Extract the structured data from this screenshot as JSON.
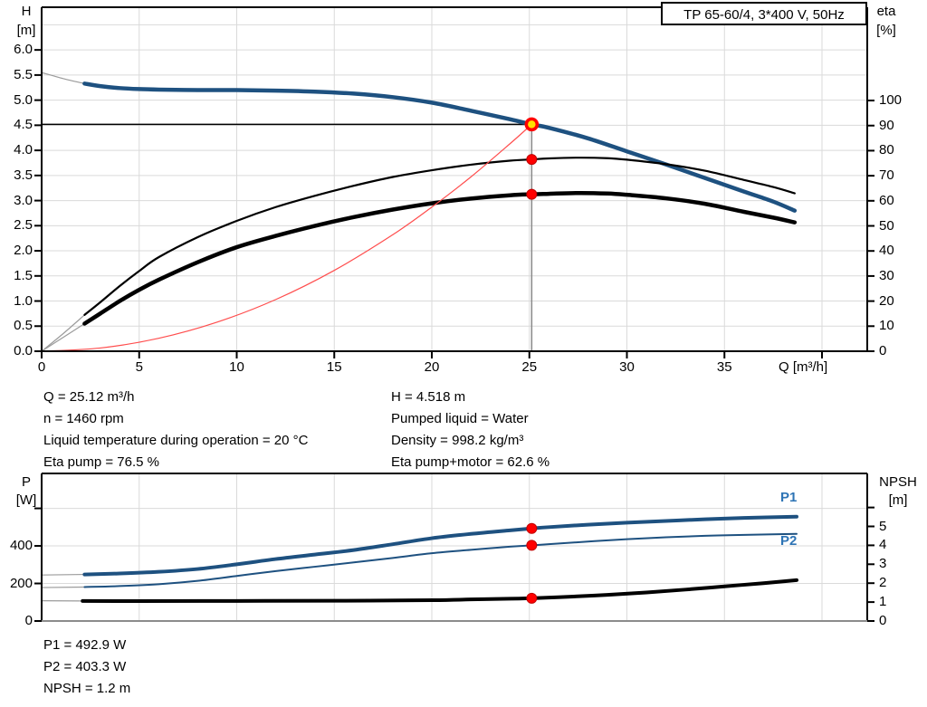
{
  "title_box": {
    "text": "TP 65-60/4, 3*400 V, 50Hz"
  },
  "colors": {
    "curve_blue": "#1E5180",
    "label_blue": "#2E74B5",
    "red_dot": "#FF0000",
    "red_dot_edge": "#C00000",
    "system_curve_red": "#FF4D4D",
    "duty_yellow": "#FFE100",
    "grid": "#DADADA",
    "lead_gray": "#9B9B9B",
    "duty_vline_gray": "#8A8A8A",
    "frame_black": "#000000",
    "bottom_frame_gray": "#8C8C8C",
    "text": "#000000"
  },
  "annotations": {
    "left": [
      "Q = 25.12 m³/h",
      "n = 1460 rpm",
      "Liquid temperature during operation = 20 °C",
      "Eta pump = 76.5 %"
    ],
    "right": [
      "H = 4.518 m",
      "Pumped liquid = Water",
      "Density = 998.2 kg/m³",
      "Eta pump+motor = 62.6 %"
    ],
    "bottom": [
      "P1 = 492.9 W",
      "P2 = 403.3 W",
      "NPSH = 1.2 m"
    ]
  },
  "chart_data": [
    {
      "type": "line",
      "title": "TP 65-60/4, 3*400 V, 50Hz",
      "x_axis": {
        "label": "Q [m³/h]",
        "range": [
          0,
          42.32
        ],
        "ticks": [
          {
            "v": 0,
            "t": "0"
          },
          {
            "v": 5,
            "t": "5"
          },
          {
            "v": 10,
            "t": "10"
          },
          {
            "v": 15,
            "t": "15"
          },
          {
            "v": 20,
            "t": "20"
          },
          {
            "v": 25,
            "t": "25"
          },
          {
            "v": 30,
            "t": "30"
          },
          {
            "v": 35,
            "t": "35"
          },
          {
            "v": 40,
            "t": ""
          }
        ],
        "grid": [
          5,
          10,
          15,
          20,
          25,
          30,
          35,
          40
        ]
      },
      "y_axis": {
        "label": "H",
        "unit": "[m]",
        "range": [
          0,
          6.85
        ],
        "ticks": [
          {
            "v": 0,
            "t": "0.0"
          },
          {
            "v": 0.5,
            "t": "0.5"
          },
          {
            "v": 1,
            "t": "1.0"
          },
          {
            "v": 1.5,
            "t": "1.5"
          },
          {
            "v": 2,
            "t": "2.0"
          },
          {
            "v": 2.5,
            "t": "2.5"
          },
          {
            "v": 3,
            "t": "3.0"
          },
          {
            "v": 3.5,
            "t": "3.5"
          },
          {
            "v": 4,
            "t": "4.0"
          },
          {
            "v": 4.5,
            "t": "4.5"
          },
          {
            "v": 5,
            "t": "5.0"
          },
          {
            "v": 5.5,
            "t": "5.5"
          },
          {
            "v": 6,
            "t": "6.0"
          }
        ],
        "grid": [
          0.5,
          1,
          1.5,
          2,
          2.5,
          3,
          3.5,
          4,
          4.5,
          5,
          5.5,
          6,
          6.5
        ]
      },
      "y2_axis": {
        "label": "eta",
        "unit": "[%]",
        "range": [
          0,
          137.2
        ],
        "ticks": [
          {
            "v": 0,
            "t": "0"
          },
          {
            "v": 10,
            "t": "10"
          },
          {
            "v": 20,
            "t": "20"
          },
          {
            "v": 30,
            "t": "30"
          },
          {
            "v": 40,
            "t": "40"
          },
          {
            "v": 50,
            "t": "50"
          },
          {
            "v": 60,
            "t": "60"
          },
          {
            "v": 70,
            "t": "70"
          },
          {
            "v": 80,
            "t": "80"
          },
          {
            "v": 90,
            "t": "90"
          },
          {
            "v": 100,
            "t": "100"
          }
        ]
      },
      "series": [
        {
          "name": "H-curve",
          "axis": "y",
          "color": "#1E5180",
          "width": 4.5,
          "points": [
            [
              2.2,
              5.33
            ],
            [
              3,
              5.28
            ],
            [
              4,
              5.24
            ],
            [
              5,
              5.22
            ],
            [
              6,
              5.21
            ],
            [
              8,
              5.2
            ],
            [
              10,
              5.2
            ],
            [
              12,
              5.19
            ],
            [
              14,
              5.17
            ],
            [
              16,
              5.13
            ],
            [
              18,
              5.06
            ],
            [
              20,
              4.95
            ],
            [
              22,
              4.79
            ],
            [
              24,
              4.62
            ],
            [
              25.12,
              4.518
            ],
            [
              26,
              4.45
            ],
            [
              28,
              4.24
            ],
            [
              30,
              3.98
            ],
            [
              32,
              3.72
            ],
            [
              34,
              3.45
            ],
            [
              36,
              3.18
            ],
            [
              37.5,
              2.98
            ],
            [
              38.6,
              2.8
            ]
          ]
        },
        {
          "name": "eta-pump",
          "axis": "y2",
          "color": "#000000",
          "width": 2.2,
          "points": [
            [
              2.2,
              14.5
            ],
            [
              3,
              19.5
            ],
            [
              4,
              26
            ],
            [
              5,
              32
            ],
            [
              6,
              37.5
            ],
            [
              8,
              45.5
            ],
            [
              10,
              52
            ],
            [
              12,
              57.5
            ],
            [
              14,
              62
            ],
            [
              16,
              66
            ],
            [
              18,
              69.5
            ],
            [
              20,
              72.2
            ],
            [
              22,
              74.4
            ],
            [
              24,
              76
            ],
            [
              25.12,
              76.5
            ],
            [
              26,
              76.9
            ],
            [
              27.5,
              77.2
            ],
            [
              29,
              77
            ],
            [
              30,
              76.4
            ],
            [
              32,
              74.6
            ],
            [
              34,
              72
            ],
            [
              36,
              68.3
            ],
            [
              37.5,
              65.5
            ],
            [
              38.6,
              63
            ]
          ]
        },
        {
          "name": "eta-pump-motor",
          "axis": "y2",
          "color": "#000000",
          "width": 4.5,
          "points": [
            [
              2.2,
              11
            ],
            [
              3,
              15
            ],
            [
              4,
              20
            ],
            [
              5,
              24.5
            ],
            [
              6,
              28.5
            ],
            [
              8,
              35.5
            ],
            [
              10,
              41.5
            ],
            [
              12,
              46
            ],
            [
              14,
              50
            ],
            [
              16,
              53.5
            ],
            [
              18,
              56.5
            ],
            [
              20,
              59
            ],
            [
              22,
              60.9
            ],
            [
              24,
              62.2
            ],
            [
              25.12,
              62.6
            ],
            [
              26,
              62.8
            ],
            [
              27.5,
              63.1
            ],
            [
              29,
              62.9
            ],
            [
              30,
              62.4
            ],
            [
              32,
              61
            ],
            [
              34,
              58.8
            ],
            [
              36,
              55.6
            ],
            [
              37.5,
              53.3
            ],
            [
              38.6,
              51.4
            ]
          ]
        },
        {
          "name": "system-curve",
          "axis": "y",
          "color": "#FF4D4D",
          "width": 1.2,
          "points": [
            [
              0,
              0
            ],
            [
              3,
              0.064
            ],
            [
              6,
              0.258
            ],
            [
              9,
              0.58
            ],
            [
              12,
              1.03
            ],
            [
              15,
              1.61
            ],
            [
              18,
              2.32
            ],
            [
              20,
              2.87
            ],
            [
              22,
              3.47
            ],
            [
              24,
              4.13
            ],
            [
              25.12,
              4.518
            ]
          ]
        },
        {
          "name": "H-curve-lead",
          "axis": "y",
          "color": "#9B9B9B",
          "width": 1.2,
          "lead": true,
          "points": [
            [
              0,
              5.55
            ],
            [
              1.1,
              5.43
            ],
            [
              2.2,
              5.33
            ]
          ]
        },
        {
          "name": "eta-pump-lead",
          "axis": "y2",
          "color": "#9B9B9B",
          "width": 1.2,
          "lead": true,
          "points": [
            [
              0,
              0
            ],
            [
              1.1,
              7
            ],
            [
              2.2,
              14.5
            ]
          ]
        },
        {
          "name": "eta-pump-motor-lead",
          "axis": "y2",
          "color": "#9B9B9B",
          "width": 1.2,
          "lead": true,
          "points": [
            [
              0,
              0
            ],
            [
              1.1,
              5.5
            ],
            [
              2.2,
              11
            ]
          ]
        }
      ],
      "duty_lines": {
        "horizontal": {
          "value": 4.518,
          "to_q": 25.12
        },
        "vertical": {
          "q": 25.12,
          "from_value": 4.518
        }
      },
      "markers": [
        {
          "type": "duty-point",
          "q": 25.12,
          "value": 4.518,
          "axis": "y"
        },
        {
          "type": "dot",
          "q": 25.12,
          "value": 76.5,
          "axis": "y2"
        },
        {
          "type": "dot",
          "q": 25.12,
          "value": 62.6,
          "axis": "y2"
        }
      ]
    },
    {
      "type": "line",
      "x_axis": {
        "label": "",
        "range": [
          0,
          42.32
        ],
        "ticks": [],
        "grid": [
          5,
          10,
          15,
          20,
          25,
          30,
          35,
          40
        ]
      },
      "y_axis": {
        "label": "P",
        "unit": "[W]",
        "range": [
          0,
          786
        ],
        "ticks": [
          {
            "v": 0,
            "t": "0"
          },
          {
            "v": 200,
            "t": "200"
          },
          {
            "v": 400,
            "t": "400"
          },
          {
            "v": 600,
            "t": ""
          }
        ],
        "grid": [
          200,
          400,
          600
        ]
      },
      "y2_axis": {
        "label": "NPSH",
        "unit": "[m]",
        "range": [
          0,
          7.8
        ],
        "ticks": [
          {
            "v": 0,
            "t": "0"
          },
          {
            "v": 1,
            "t": "1"
          },
          {
            "v": 2,
            "t": "2"
          },
          {
            "v": 3,
            "t": "3"
          },
          {
            "v": 4,
            "t": "4"
          },
          {
            "v": 5,
            "t": "5"
          },
          {
            "v": 6,
            "t": ""
          }
        ]
      },
      "series": [
        {
          "name": "P1",
          "axis": "y",
          "color": "#1E5180",
          "width": 4,
          "points": [
            [
              2.2,
              248
            ],
            [
              4,
              253
            ],
            [
              6,
              262
            ],
            [
              8,
              277
            ],
            [
              10,
              302
            ],
            [
              12,
              330
            ],
            [
              14,
              354
            ],
            [
              16,
              378
            ],
            [
              18,
              409
            ],
            [
              20,
              441
            ],
            [
              22,
              464
            ],
            [
              24,
              483
            ],
            [
              25.12,
              493
            ],
            [
              26,
              500
            ],
            [
              28,
              513
            ],
            [
              30,
              524
            ],
            [
              32,
              533
            ],
            [
              34,
              542
            ],
            [
              36,
              549
            ],
            [
              38.7,
              556
            ]
          ]
        },
        {
          "name": "P2",
          "axis": "y",
          "color": "#1E5180",
          "width": 2,
          "points": [
            [
              2.2,
              181
            ],
            [
              4,
              186
            ],
            [
              6,
              196
            ],
            [
              8,
              214
            ],
            [
              10,
              240
            ],
            [
              12,
              266
            ],
            [
              14,
              289
            ],
            [
              16,
              312
            ],
            [
              18,
              336
            ],
            [
              20,
              361
            ],
            [
              22,
              379
            ],
            [
              24,
              396
            ],
            [
              25.12,
              403
            ],
            [
              26,
              409
            ],
            [
              28,
              423
            ],
            [
              30,
              436
            ],
            [
              32,
              446
            ],
            [
              34,
              454
            ],
            [
              36,
              459
            ],
            [
              38.7,
              464
            ]
          ]
        },
        {
          "name": "NPSH",
          "axis": "y2",
          "color": "#000000",
          "width": 4,
          "points": [
            [
              2.1,
              1.06
            ],
            [
              5,
              1.05
            ],
            [
              10,
              1.06
            ],
            [
              15,
              1.07
            ],
            [
              20,
              1.1
            ],
            [
              22,
              1.14
            ],
            [
              24,
              1.18
            ],
            [
              25.12,
              1.2
            ],
            [
              27,
              1.28
            ],
            [
              29,
              1.38
            ],
            [
              31,
              1.51
            ],
            [
              33,
              1.66
            ],
            [
              35,
              1.83
            ],
            [
              37,
              2.0
            ],
            [
              38.7,
              2.16
            ]
          ]
        },
        {
          "name": "P1-lead",
          "axis": "y",
          "color": "#9B9B9B",
          "width": 1.2,
          "lead": true,
          "points": [
            [
              0,
              245
            ],
            [
              2.2,
              248
            ]
          ]
        },
        {
          "name": "P2-lead",
          "axis": "y",
          "color": "#9B9B9B",
          "width": 1.2,
          "lead": true,
          "points": [
            [
              0,
              178
            ],
            [
              2.2,
              181
            ]
          ]
        },
        {
          "name": "NPSH-lead",
          "axis": "y2",
          "color": "#9B9B9B",
          "width": 1.2,
          "lead": true,
          "points": [
            [
              0,
              1.07
            ],
            [
              2.1,
              1.06
            ]
          ]
        }
      ],
      "markers": [
        {
          "type": "dot",
          "q": 25.12,
          "value": 492.9,
          "axis": "y"
        },
        {
          "type": "dot",
          "q": 25.12,
          "value": 403.3,
          "axis": "y"
        },
        {
          "type": "dot",
          "q": 25.12,
          "value": 1.2,
          "axis": "y2"
        }
      ]
    }
  ]
}
